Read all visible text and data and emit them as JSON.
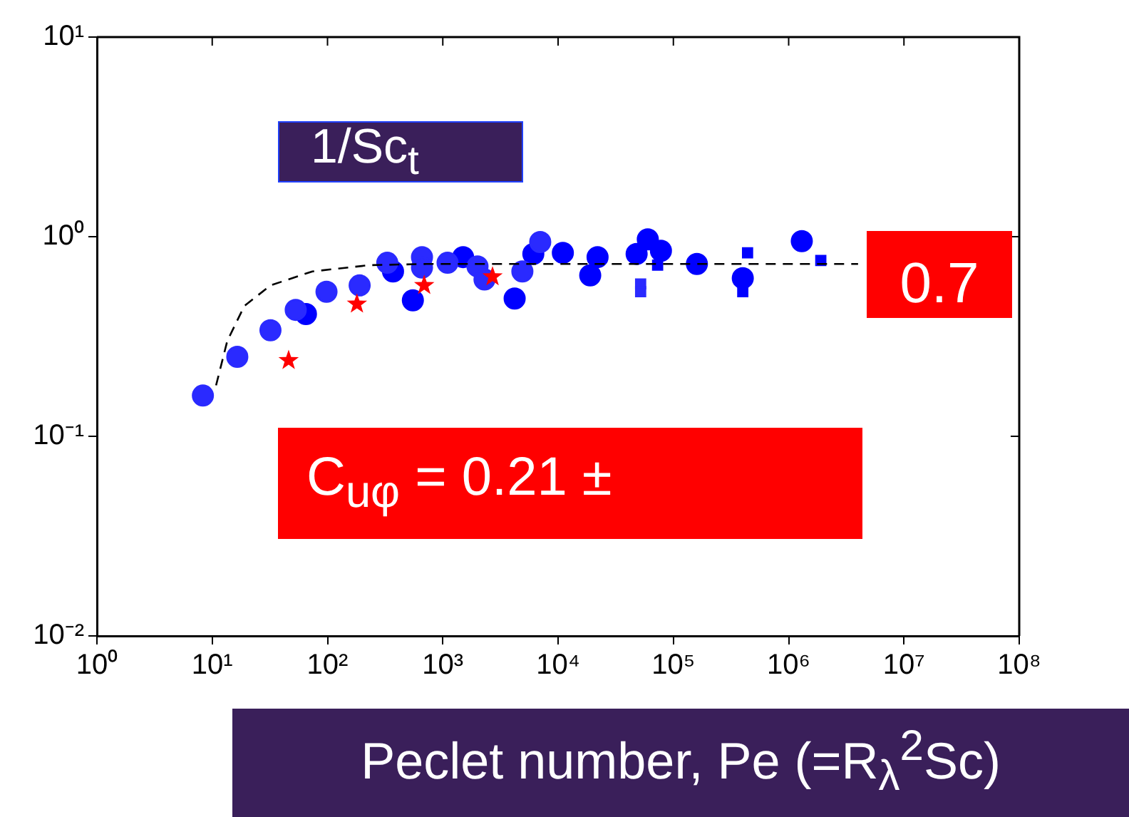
{
  "chart_data": {
    "type": "scatter",
    "xlabel": "Peclet number, Pe (=R$_{λ}$$^{2}$Sc)",
    "log": "xy",
    "grid": false,
    "legend": false,
    "xlim": [
      1,
      100000000
    ],
    "ylim": [
      0.01,
      10
    ],
    "xticks": [
      {
        "value": 1,
        "label": "10⁰"
      },
      {
        "value": 10,
        "label": "10¹"
      },
      {
        "value": 100,
        "label": "10²"
      },
      {
        "value": 1000,
        "label": "10³"
      },
      {
        "value": 10000,
        "label": "10⁴"
      },
      {
        "value": 100000,
        "label": "10⁵"
      },
      {
        "value": 1000000,
        "label": "10⁶"
      },
      {
        "value": 10000000,
        "label": "10⁷"
      },
      {
        "value": 100000000,
        "label": "10⁸"
      }
    ],
    "yticks": [
      {
        "value": 0.01,
        "label": "10⁻²"
      },
      {
        "value": 0.1,
        "label": "10⁻¹"
      },
      {
        "value": 1,
        "label": "10⁰"
      },
      {
        "value": 10,
        "label": "10¹"
      }
    ],
    "series": [
      {
        "type": "line",
        "color": "#000000",
        "marker": "none",
        "line_style": "dashed",
        "x": [
          10.8,
          13.5,
          19,
          32,
          74,
          230,
          720,
          3000,
          4000000
        ],
        "values": [
          0.18,
          0.3,
          0.45,
          0.57,
          0.67,
          0.72,
          0.73,
          0.73,
          0.73
        ]
      },
      {
        "color": "#2a2aff",
        "marker": "circle",
        "x": [
          8.3,
          16.5,
          32,
          53,
          98,
          190,
          330,
          660,
          660,
          1100,
          2000,
          2300,
          4900,
          7000
        ],
        "values": [
          0.16,
          0.25,
          0.34,
          0.43,
          0.53,
          0.57,
          0.74,
          0.79,
          0.7,
          0.74,
          0.71,
          0.61,
          0.67,
          0.94
        ]
      },
      {
        "color": "#2a2aff",
        "marker": "square",
        "x": [
          52000,
          52000
        ],
        "values": [
          0.58,
          0.53
        ]
      },
      {
        "color": "#ff0000",
        "marker": "star",
        "x": [
          46,
          180,
          690,
          2700
        ],
        "values": [
          0.24,
          0.46,
          0.57,
          0.63
        ]
      },
      {
        "color": "#0000ff",
        "marker": "circle",
        "x": [
          65,
          370,
          550,
          1500,
          4200,
          6100,
          11000,
          19000,
          22000,
          48000,
          60000,
          78000,
          160000,
          400000,
          1300000
        ],
        "values": [
          0.41,
          0.67,
          0.48,
          0.79,
          0.49,
          0.82,
          0.83,
          0.64,
          0.79,
          0.82,
          0.97,
          0.85,
          0.73,
          0.62,
          0.95
        ]
      },
      {
        "color": "#0000ff",
        "marker": "square",
        "x": [
          73000,
          440000,
          400000,
          1900000
        ],
        "values": [
          0.72,
          0.83,
          0.53,
          0.76
        ]
      }
    ],
    "annotations": [
      "1/Sc$_{t}$",
      "0.7",
      "C$_{uφ}$ = 0.21 ±"
    ]
  }
}
